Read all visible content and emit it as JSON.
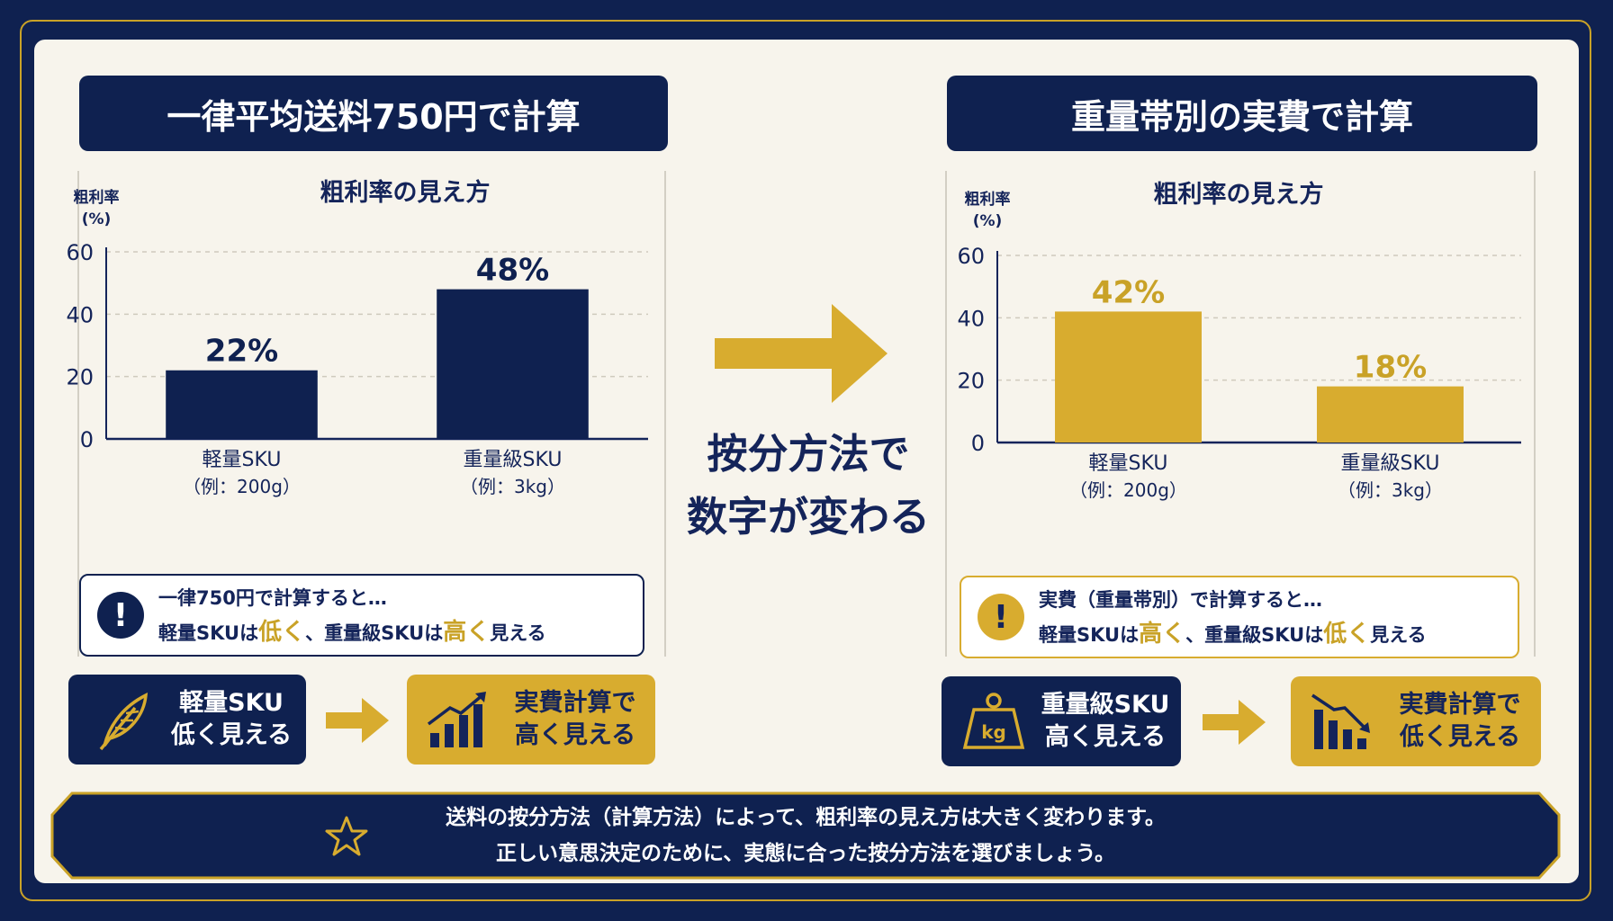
{
  "left": {
    "title": "一律平均送料750円で計算",
    "chart_title": "粗利率の見え方",
    "y_unit_line1": "粗利率",
    "y_unit_line2": "(%)",
    "note_line1": "一律750円で計算すると…",
    "note_line2": {
      "a": "軽量SKUは",
      "b": "低く",
      "c": "、重量級SKUは",
      "d": "高く",
      "e": "見える"
    },
    "pill_from": {
      "line1": "軽量SKU",
      "line2": "低く見える",
      "icon": "feather-icon"
    },
    "pill_to": {
      "line1": "実費計算で",
      "line2": "高く見える",
      "icon": "chart-up-icon"
    }
  },
  "right": {
    "title": "重量帯別の実費で計算",
    "chart_title": "粗利率の見え方",
    "y_unit_line1": "粗利率",
    "y_unit_line2": "(%)",
    "note_line1": "実費（重量帯別）で計算すると…",
    "note_line2": {
      "a": "軽量SKUは",
      "b": "高く",
      "c": "、重量級SKUは",
      "d": "低く",
      "e": "見える"
    },
    "pill_from": {
      "line1": "重量級SKU",
      "line2": "高く見える",
      "icon": "weight-kg-icon"
    },
    "pill_to": {
      "line1": "実費計算で",
      "line2": "低く見える",
      "icon": "chart-down-icon"
    }
  },
  "middle": {
    "line1": "按分方法で",
    "line2": "数字が変わる"
  },
  "footer": {
    "line1": "送料の按分方法（計算方法）によって、粗利率の見え方は大きく変わります。",
    "line2": "正しい意思決定のために、実態に合った按分方法を選びましょう。"
  },
  "colors": {
    "navy": "#0f2150",
    "gold": "#d8ac2f",
    "cream": "#f7f4ec"
  },
  "chart_data": [
    {
      "type": "bar",
      "title": "粗利率の見え方",
      "ylabel": "粗利率 (%)",
      "categories": [
        [
          "軽量SKU",
          "（例：200g）"
        ],
        [
          "重量級SKU",
          "（例：3kg）"
        ]
      ],
      "values": [
        22,
        48
      ],
      "labels": [
        "22%",
        "48%"
      ],
      "yticks": [
        "0",
        "20",
        "40",
        "60"
      ],
      "ylim": [
        0,
        60
      ],
      "grid": true,
      "color": "#0f2150"
    },
    {
      "type": "bar",
      "title": "粗利率の見え方",
      "ylabel": "粗利率 (%)",
      "categories": [
        [
          "軽量SKU",
          "（例：200g）"
        ],
        [
          "重量級SKU",
          "（例：3kg）"
        ]
      ],
      "values": [
        42,
        18
      ],
      "labels": [
        "42%",
        "18%"
      ],
      "yticks": [
        "0",
        "20",
        "40",
        "60"
      ],
      "ylim": [
        0,
        60
      ],
      "grid": true,
      "color": "#d8ac2f"
    }
  ]
}
